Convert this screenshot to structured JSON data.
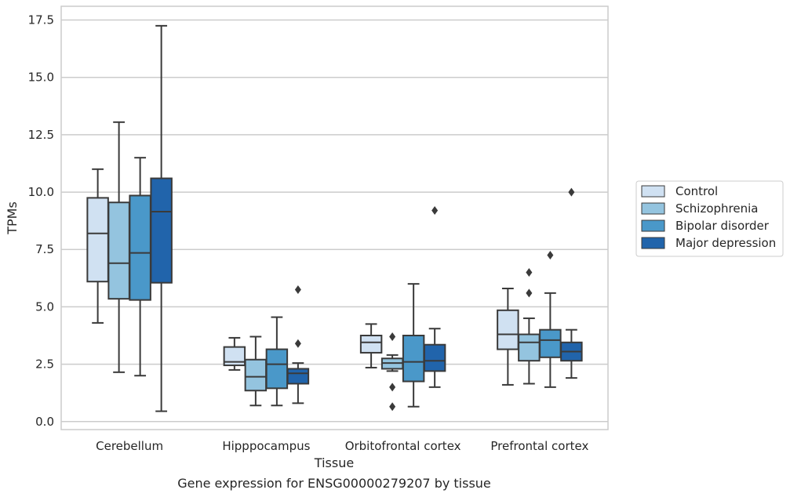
{
  "chart_data": {
    "type": "boxplot",
    "title": "",
    "caption": "Gene expression for ENSG00000279207 by tissue",
    "xlabel": "Tissue",
    "ylabel": "TPMs",
    "ylim": [
      -0.35,
      18.1
    ],
    "yticks": [
      0.0,
      2.5,
      5.0,
      7.5,
      10.0,
      12.5,
      15.0,
      17.5
    ],
    "ytick_labels": [
      "0.0",
      "2.5",
      "5.0",
      "7.5",
      "10.0",
      "12.5",
      "15.0",
      "17.5"
    ],
    "categories": [
      "Cerebellum",
      "Hipppocampus",
      "Orbitofrontal cortex",
      "Prefrontal cortex"
    ],
    "grid": true,
    "legend_position": "right",
    "series": [
      {
        "name": "Control",
        "color": "#d0e1f2",
        "boxes": [
          {
            "whislo": 4.3,
            "q1": 6.1,
            "med": 8.2,
            "q3": 9.75,
            "whishi": 11.0,
            "fliers": []
          },
          {
            "whislo": 2.25,
            "q1": 2.45,
            "med": 2.6,
            "q3": 3.25,
            "whishi": 3.65,
            "fliers": []
          },
          {
            "whislo": 2.35,
            "q1": 3.0,
            "med": 3.45,
            "q3": 3.75,
            "whishi": 4.25,
            "fliers": []
          },
          {
            "whislo": 1.6,
            "q1": 3.15,
            "med": 3.8,
            "q3": 4.85,
            "whishi": 5.8,
            "fliers": []
          }
        ]
      },
      {
        "name": "Schizophrenia",
        "color": "#94c4df",
        "boxes": [
          {
            "whislo": 2.15,
            "q1": 5.35,
            "med": 6.9,
            "q3": 9.55,
            "whishi": 13.05,
            "fliers": []
          },
          {
            "whislo": 0.7,
            "q1": 1.35,
            "med": 1.95,
            "q3": 2.7,
            "whishi": 3.7,
            "fliers": []
          },
          {
            "whislo": 2.2,
            "q1": 2.3,
            "med": 2.55,
            "q3": 2.75,
            "whishi": 2.9,
            "fliers": [
              3.7,
              1.5,
              0.65
            ]
          },
          {
            "whislo": 1.65,
            "q1": 2.65,
            "med": 3.45,
            "q3": 3.8,
            "whishi": 4.5,
            "fliers": [
              6.5,
              5.6
            ]
          }
        ]
      },
      {
        "name": "Bipolar disorder",
        "color": "#4a98c9",
        "boxes": [
          {
            "whislo": 2.0,
            "q1": 5.3,
            "med": 7.35,
            "q3": 9.85,
            "whishi": 11.5,
            "fliers": []
          },
          {
            "whislo": 0.7,
            "q1": 1.45,
            "med": 2.5,
            "q3": 3.15,
            "whishi": 4.55,
            "fliers": []
          },
          {
            "whislo": 0.65,
            "q1": 1.75,
            "med": 2.6,
            "q3": 3.75,
            "whishi": 6.0,
            "fliers": []
          },
          {
            "whislo": 1.5,
            "q1": 2.8,
            "med": 3.55,
            "q3": 4.0,
            "whishi": 5.6,
            "fliers": [
              7.25
            ]
          }
        ]
      },
      {
        "name": "Major depression",
        "color": "#2164ab",
        "boxes": [
          {
            "whislo": 0.45,
            "q1": 6.05,
            "med": 9.15,
            "q3": 10.6,
            "whishi": 17.25,
            "fliers": []
          },
          {
            "whislo": 0.8,
            "q1": 1.65,
            "med": 2.1,
            "q3": 2.3,
            "whishi": 2.55,
            "fliers": [
              5.75,
              3.4
            ]
          },
          {
            "whislo": 1.5,
            "q1": 2.2,
            "med": 2.65,
            "q3": 3.35,
            "whishi": 4.05,
            "fliers": [
              9.2
            ]
          },
          {
            "whislo": 1.9,
            "q1": 2.65,
            "med": 3.05,
            "q3": 3.45,
            "whishi": 4.0,
            "fliers": [
              10.0
            ]
          }
        ]
      }
    ]
  }
}
